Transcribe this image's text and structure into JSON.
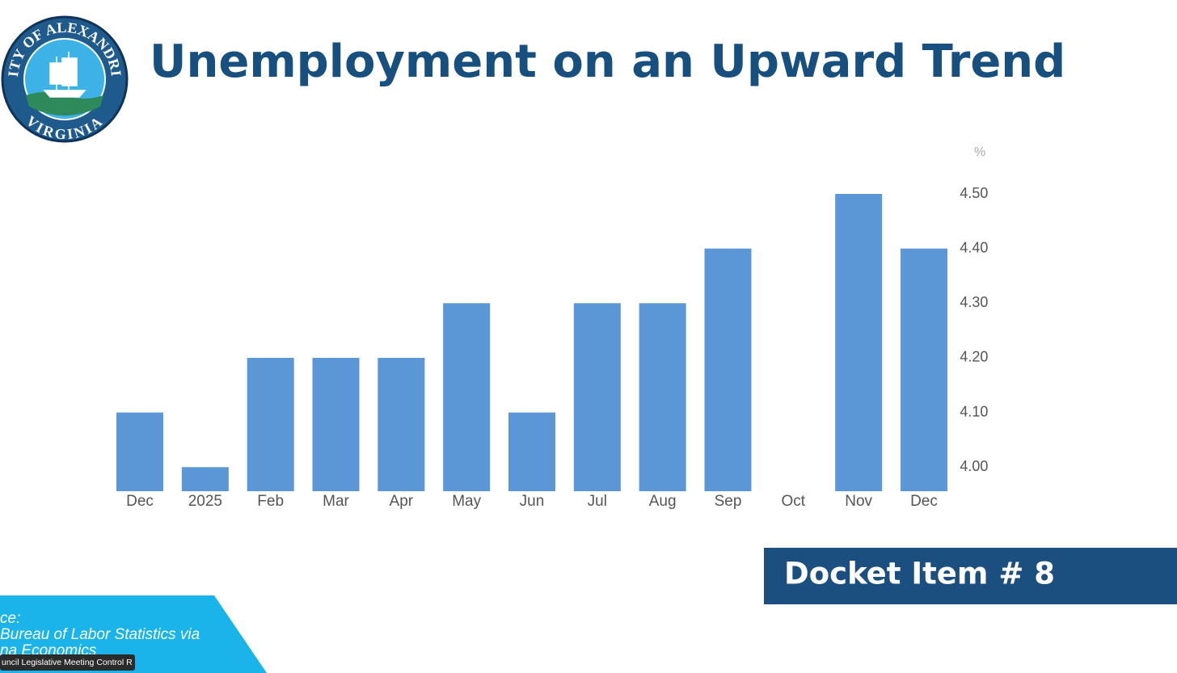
{
  "logo": {
    "top": "CITY OF ALEXANDRIA",
    "bottom": "VIRGINIA"
  },
  "chart_data": {
    "type": "bar",
    "title": "Unemployment on an Upward Trend",
    "y_unit": "%",
    "categories": [
      "Dec",
      "2025",
      "Feb",
      "Mar",
      "Apr",
      "May",
      "Jun",
      "Jul",
      "Aug",
      "Sep",
      "Oct",
      "Nov",
      "Dec"
    ],
    "values": [
      4.1,
      4.0,
      4.2,
      4.2,
      4.2,
      4.3,
      4.1,
      4.3,
      4.3,
      4.4,
      null,
      4.5,
      4.4
    ],
    "color": "#5b96d6",
    "grid": false,
    "y_axis_side": "right",
    "ylim": [
      3.956,
      4.5
    ],
    "yticks": [
      {
        "value": 4.0,
        "label": "4.00"
      },
      {
        "value": 4.1,
        "label": "4.10"
      },
      {
        "value": 4.2,
        "label": "4.20"
      },
      {
        "value": 4.3,
        "label": "4.30"
      },
      {
        "value": 4.4,
        "label": "4.40"
      },
      {
        "value": 4.5,
        "label": "4.50"
      }
    ]
  },
  "docket": "Docket Item # 8",
  "source": [
    "ce:",
    "Bureau of Labor Statistics via",
    "na Economics"
  ],
  "window_label": "uncil Legislative Meeting Control R"
}
